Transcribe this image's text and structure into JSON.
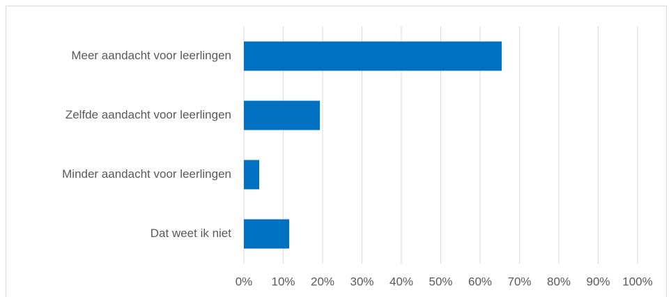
{
  "chart_data": {
    "type": "hbar",
    "categories": [
      "Meer aandacht voor leerlingen",
      "Zelfde aandacht voor leerlingen",
      "Minder aandacht voor leerlingen",
      "Dat weet ik niet"
    ],
    "values": [
      65.5,
      19.3,
      3.9,
      11.5
    ],
    "color": "#0070c0",
    "xlim": [
      0,
      100
    ],
    "xticks": [
      {
        "value": 0,
        "label": "0%"
      },
      {
        "value": 10,
        "label": "10%"
      },
      {
        "value": 20,
        "label": "20%"
      },
      {
        "value": 30,
        "label": "30%"
      },
      {
        "value": 40,
        "label": "40%"
      },
      {
        "value": 50,
        "label": "50%"
      },
      {
        "value": 60,
        "label": "60%"
      },
      {
        "value": 70,
        "label": "70%"
      },
      {
        "value": 80,
        "label": "80%"
      },
      {
        "value": 90,
        "label": "90%"
      },
      {
        "value": 100,
        "label": "100%"
      }
    ],
    "grid": true
  }
}
